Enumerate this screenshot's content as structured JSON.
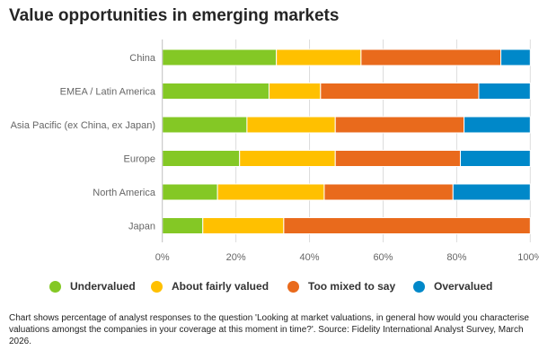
{
  "title": "Value opportunities in emerging markets",
  "chart_data": {
    "type": "bar",
    "orientation": "horizontal",
    "stacked": true,
    "title": "Value opportunities in emerging markets",
    "xlabel": "",
    "ylabel": "",
    "xlim": [
      0,
      100
    ],
    "x_ticks": [
      "0%",
      "20%",
      "40%",
      "60%",
      "80%",
      "100%"
    ],
    "x_tick_values": [
      0,
      20,
      40,
      60,
      80,
      100
    ],
    "grid": true,
    "legend_position": "bottom",
    "categories": [
      "China",
      "EMEA / Latin America",
      "Asia Pacific (ex China, ex Japan)",
      "Europe",
      "North America",
      "Japan"
    ],
    "series": [
      {
        "name": "Undervalued",
        "color": "#84C825",
        "values": [
          31,
          29,
          23,
          21,
          15,
          11
        ]
      },
      {
        "name": "About fairly valued",
        "color": "#FFC000",
        "values": [
          23,
          14,
          24,
          26,
          29,
          22
        ]
      },
      {
        "name": "Too mixed to say",
        "color": "#E96A1C",
        "values": [
          38,
          43,
          35,
          34,
          35,
          67
        ]
      },
      {
        "name": "Overvalued",
        "color": "#0088C9",
        "values": [
          8,
          14,
          18,
          19,
          21,
          0
        ]
      }
    ]
  },
  "legend": [
    {
      "label": "Undervalued",
      "color": "#84C825"
    },
    {
      "label": "About fairly valued",
      "color": "#FFC000"
    },
    {
      "label": "Too mixed to say",
      "color": "#E96A1C"
    },
    {
      "label": "Overvalued",
      "color": "#0088C9"
    }
  ],
  "note": "Chart shows percentage of analyst responses to the question 'Looking at market valuations, in general how would you characterise valuations amongst the companies in your coverage at this moment in time?'. Source: Fidelity International Analyst Survey, March 2026."
}
